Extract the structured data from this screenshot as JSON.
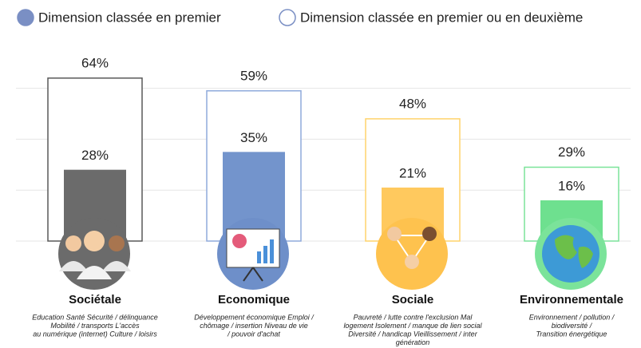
{
  "chart_data": {
    "type": "bar",
    "categories": [
      "Sociétale",
      "Economique",
      "Sociale",
      "Environnementale"
    ],
    "descriptions": [
      [
        "Education Santé Sécurité / délinquance",
        "Mobilité / transports L'accès",
        "au numérique (internet) Culture / loisirs"
      ],
      [
        "Développement économique Emploi /",
        "chômage / insertion Niveau de vie",
        "/ pouvoir d'achat"
      ],
      [
        "Pauvreté / lutte contre l'exclusion Mal",
        "logement Isolement / manque de lien social",
        "Diversité / handicap Vieillissement / inter",
        "génération"
      ],
      [
        "Environnement / pollution /",
        "biodiversité /",
        "Transition énergétique"
      ]
    ],
    "colors": [
      "#6b6b6b",
      "#7394cc",
      "#ffc95e",
      "#6ee08f"
    ],
    "outline_colors": [
      "#595959",
      "#8faadc",
      "#ffd36b",
      "#7be39a"
    ],
    "series": [
      {
        "name": "Dimension classée en premier",
        "color": "#7a8fc4",
        "values": [
          28,
          35,
          21,
          16
        ],
        "value_labels": [
          "28%",
          "35%",
          "21%",
          "16%"
        ]
      },
      {
        "name": "Dimension classée en premier ou en deuxième",
        "color": "#ffffff",
        "values": [
          64,
          59,
          48,
          29
        ],
        "value_labels": [
          "64%",
          "59%",
          "48%",
          "29%"
        ]
      }
    ],
    "ylim": [
      0,
      70
    ],
    "yticks": [
      0,
      20,
      40,
      60
    ],
    "grid": true
  }
}
